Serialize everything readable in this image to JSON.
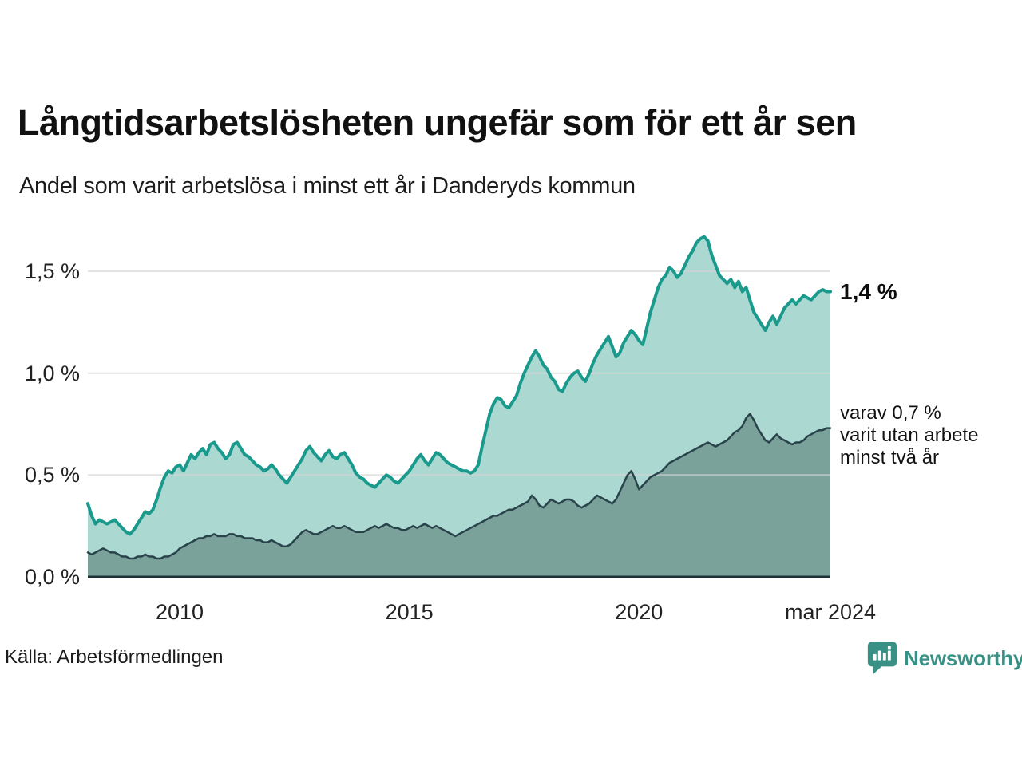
{
  "header": {
    "title": "Långtidsarbetslösheten ungefär som för ett år sen",
    "subtitle": "Andel som varit arbetslösa i minst ett år i Danderyds kommun"
  },
  "annotations": {
    "latest_total": "1,4 %",
    "secondary_line1": "varav 0,7 %",
    "secondary_line2": "varit utan arbete",
    "secondary_line3": "minst två år"
  },
  "footer": {
    "source": "Källa: Arbetsförmedlingen",
    "logo_text": "Newsworthy"
  },
  "colors": {
    "total_line": "#1a9a8c",
    "total_fill": "#acd8d2",
    "two_year_line": "#29434b",
    "two_year_fill": "#7aa19a",
    "gridline": "#d4d4d4",
    "baseline": "#1d3137",
    "logo_teal": "#399186"
  },
  "chart_data": {
    "type": "area",
    "title": "Långtidsarbetslösheten ungefär som för ett år sen",
    "subtitle": "Andel som varit arbetslösa i minst ett år i Danderyds kommun",
    "xlabel": "",
    "ylabel": "",
    "grid": "horizontal",
    "xlim": [
      2008,
      2024.1667
    ],
    "ylim": [
      0,
      1.75
    ],
    "x_start_year": 2008,
    "x_step_months": 1,
    "x_tick_labels": [
      "2010",
      "2015",
      "2020",
      "mar 2024"
    ],
    "x_tick_values": [
      2010,
      2015,
      2020,
      2024.1667
    ],
    "y_tick_labels": [
      "1,5 %",
      "1,0 %",
      "0,5 %",
      "0,0 %"
    ],
    "y_tick_values": [
      1.5,
      1.0,
      0.5,
      0.0
    ],
    "series": [
      {
        "name": "arbetslösa minst ett år (totalt)",
        "end_label": "1,4 %",
        "end_value": 1.4,
        "values": [
          0.36,
          0.3,
          0.26,
          0.28,
          0.27,
          0.26,
          0.27,
          0.28,
          0.26,
          0.24,
          0.22,
          0.21,
          0.23,
          0.26,
          0.29,
          0.32,
          0.31,
          0.33,
          0.38,
          0.44,
          0.49,
          0.52,
          0.51,
          0.54,
          0.55,
          0.52,
          0.56,
          0.6,
          0.58,
          0.61,
          0.63,
          0.6,
          0.65,
          0.66,
          0.63,
          0.61,
          0.58,
          0.6,
          0.65,
          0.66,
          0.63,
          0.6,
          0.59,
          0.57,
          0.55,
          0.54,
          0.52,
          0.53,
          0.55,
          0.53,
          0.5,
          0.48,
          0.46,
          0.49,
          0.52,
          0.55,
          0.58,
          0.62,
          0.64,
          0.61,
          0.59,
          0.57,
          0.6,
          0.62,
          0.59,
          0.58,
          0.6,
          0.61,
          0.58,
          0.55,
          0.51,
          0.49,
          0.48,
          0.46,
          0.45,
          0.44,
          0.46,
          0.48,
          0.5,
          0.49,
          0.47,
          0.46,
          0.48,
          0.5,
          0.52,
          0.55,
          0.58,
          0.6,
          0.57,
          0.55,
          0.58,
          0.61,
          0.6,
          0.58,
          0.56,
          0.55,
          0.54,
          0.53,
          0.52,
          0.52,
          0.51,
          0.52,
          0.55,
          0.64,
          0.72,
          0.8,
          0.85,
          0.88,
          0.87,
          0.84,
          0.83,
          0.86,
          0.89,
          0.95,
          1.0,
          1.04,
          1.08,
          1.11,
          1.08,
          1.04,
          1.02,
          0.98,
          0.96,
          0.92,
          0.91,
          0.95,
          0.98,
          1.0,
          1.01,
          0.98,
          0.96,
          1.0,
          1.05,
          1.09,
          1.12,
          1.15,
          1.18,
          1.13,
          1.08,
          1.1,
          1.15,
          1.18,
          1.21,
          1.19,
          1.16,
          1.14,
          1.22,
          1.3,
          1.36,
          1.42,
          1.46,
          1.48,
          1.52,
          1.5,
          1.47,
          1.49,
          1.53,
          1.57,
          1.6,
          1.64,
          1.66,
          1.67,
          1.65,
          1.58,
          1.53,
          1.48,
          1.46,
          1.44,
          1.46,
          1.42,
          1.45,
          1.4,
          1.42,
          1.36,
          1.3,
          1.27,
          1.24,
          1.21,
          1.25,
          1.28,
          1.24,
          1.28,
          1.32,
          1.34,
          1.36,
          1.34,
          1.36,
          1.38,
          1.37,
          1.36,
          1.38,
          1.4,
          1.41,
          1.4,
          1.4
        ]
      },
      {
        "name": "utan arbete minst två år",
        "end_label": "varav 0,7 % varit utan arbete minst två år",
        "end_value": 0.7,
        "values": [
          0.12,
          0.11,
          0.12,
          0.13,
          0.14,
          0.13,
          0.12,
          0.12,
          0.11,
          0.1,
          0.1,
          0.09,
          0.09,
          0.1,
          0.1,
          0.11,
          0.1,
          0.1,
          0.09,
          0.09,
          0.1,
          0.1,
          0.11,
          0.12,
          0.14,
          0.15,
          0.16,
          0.17,
          0.18,
          0.19,
          0.19,
          0.2,
          0.2,
          0.21,
          0.2,
          0.2,
          0.2,
          0.21,
          0.21,
          0.2,
          0.2,
          0.19,
          0.19,
          0.19,
          0.18,
          0.18,
          0.17,
          0.17,
          0.18,
          0.17,
          0.16,
          0.15,
          0.15,
          0.16,
          0.18,
          0.2,
          0.22,
          0.23,
          0.22,
          0.21,
          0.21,
          0.22,
          0.23,
          0.24,
          0.25,
          0.24,
          0.24,
          0.25,
          0.24,
          0.23,
          0.22,
          0.22,
          0.22,
          0.23,
          0.24,
          0.25,
          0.24,
          0.25,
          0.26,
          0.25,
          0.24,
          0.24,
          0.23,
          0.23,
          0.24,
          0.25,
          0.24,
          0.25,
          0.26,
          0.25,
          0.24,
          0.25,
          0.24,
          0.23,
          0.22,
          0.21,
          0.2,
          0.21,
          0.22,
          0.23,
          0.24,
          0.25,
          0.26,
          0.27,
          0.28,
          0.29,
          0.3,
          0.3,
          0.31,
          0.32,
          0.33,
          0.33,
          0.34,
          0.35,
          0.36,
          0.37,
          0.4,
          0.38,
          0.35,
          0.34,
          0.36,
          0.38,
          0.37,
          0.36,
          0.37,
          0.38,
          0.38,
          0.37,
          0.35,
          0.34,
          0.35,
          0.36,
          0.38,
          0.4,
          0.39,
          0.38,
          0.37,
          0.36,
          0.38,
          0.42,
          0.46,
          0.5,
          0.52,
          0.48,
          0.43,
          0.45,
          0.47,
          0.49,
          0.5,
          0.51,
          0.52,
          0.54,
          0.56,
          0.57,
          0.58,
          0.59,
          0.6,
          0.61,
          0.62,
          0.63,
          0.64,
          0.65,
          0.66,
          0.65,
          0.64,
          0.65,
          0.66,
          0.67,
          0.69,
          0.71,
          0.72,
          0.74,
          0.78,
          0.8,
          0.77,
          0.73,
          0.7,
          0.67,
          0.66,
          0.68,
          0.7,
          0.68,
          0.67,
          0.66,
          0.65,
          0.66,
          0.66,
          0.67,
          0.69,
          0.7,
          0.71,
          0.72,
          0.72,
          0.73,
          0.73
        ]
      }
    ]
  }
}
